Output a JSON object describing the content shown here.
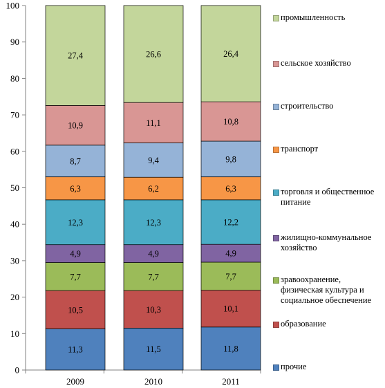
{
  "chart_data": {
    "type": "bar",
    "stacked": true,
    "categories": [
      "2009",
      "2010",
      "2011"
    ],
    "ylim": [
      0,
      100
    ],
    "yticks": [
      0,
      10,
      20,
      30,
      40,
      50,
      60,
      70,
      80,
      90,
      100
    ],
    "grid": false,
    "legend_position": "right",
    "series": [
      {
        "name": "прочие",
        "color": "#4f81bd",
        "values": [
          11.3,
          11.5,
          11.8
        ],
        "labels": [
          "11,3",
          "11,5",
          "11,8"
        ]
      },
      {
        "name": "образование",
        "color": "#c0504d",
        "values": [
          10.5,
          10.3,
          10.1
        ],
        "labels": [
          "10,5",
          "10,3",
          "10,1"
        ]
      },
      {
        "name": "зравоохранение, физическая культура и социальное обеспечение",
        "color": "#9bbb59",
        "values": [
          7.7,
          7.7,
          7.7
        ],
        "labels": [
          "7,7",
          "7,7",
          "7,7"
        ]
      },
      {
        "name": "жилищно-коммунальное хозяйство",
        "color": "#8064a2",
        "values": [
          4.9,
          4.9,
          4.9
        ],
        "labels": [
          "4,9",
          "4,9",
          "4,9"
        ]
      },
      {
        "name": "торговля и общественное питание",
        "color": "#4bacc6",
        "values": [
          12.3,
          12.3,
          12.2
        ],
        "labels": [
          "12,3",
          "12,3",
          "12,2"
        ]
      },
      {
        "name": "транспорт",
        "color": "#f79646",
        "values": [
          6.3,
          6.2,
          6.3
        ],
        "labels": [
          "6,3",
          "6,2",
          "6,3"
        ]
      },
      {
        "name": "строительство",
        "color": "#95b3d7",
        "values": [
          8.7,
          9.4,
          9.8
        ],
        "labels": [
          "8,7",
          "9,4",
          "9,8"
        ]
      },
      {
        "name": "сельское хозяйство",
        "color": "#d99694",
        "values": [
          10.9,
          11.1,
          10.8
        ],
        "labels": [
          "10,9",
          "11,1",
          "10,8"
        ]
      },
      {
        "name": "промышленность",
        "color": "#c3d69b",
        "values": [
          27.4,
          26.6,
          26.4
        ],
        "labels": [
          "27,4",
          "26,6",
          "26,4"
        ]
      }
    ]
  },
  "legend": [
    {
      "key": "промышленность",
      "text": "промышленность",
      "color": "#c3d69b"
    },
    {
      "key": "сельское хозяйство",
      "text": "сельское хозяйство",
      "color": "#d99694"
    },
    {
      "key": "строительство",
      "text": "строительство",
      "color": "#95b3d7"
    },
    {
      "key": "транспорт",
      "text": "транспорт",
      "color": "#f79646"
    },
    {
      "key": "торговля и общественное питание",
      "text": "торговля и общественное питание",
      "color": "#4bacc6"
    },
    {
      "key": "жилищно-коммунальное хозяйство",
      "text": "жилищно-коммунальное хозяйство",
      "color": "#8064a2"
    },
    {
      "key": "зравоохранение, физическая культура и социальное обеспечение",
      "text": "зравоохранение, физическая культура и социальное обеспечение",
      "color": "#9bbb59"
    },
    {
      "key": "образование",
      "text": "образование",
      "color": "#c0504d"
    },
    {
      "key": "прочие",
      "text": "прочие",
      "color": "#4f81bd"
    }
  ]
}
